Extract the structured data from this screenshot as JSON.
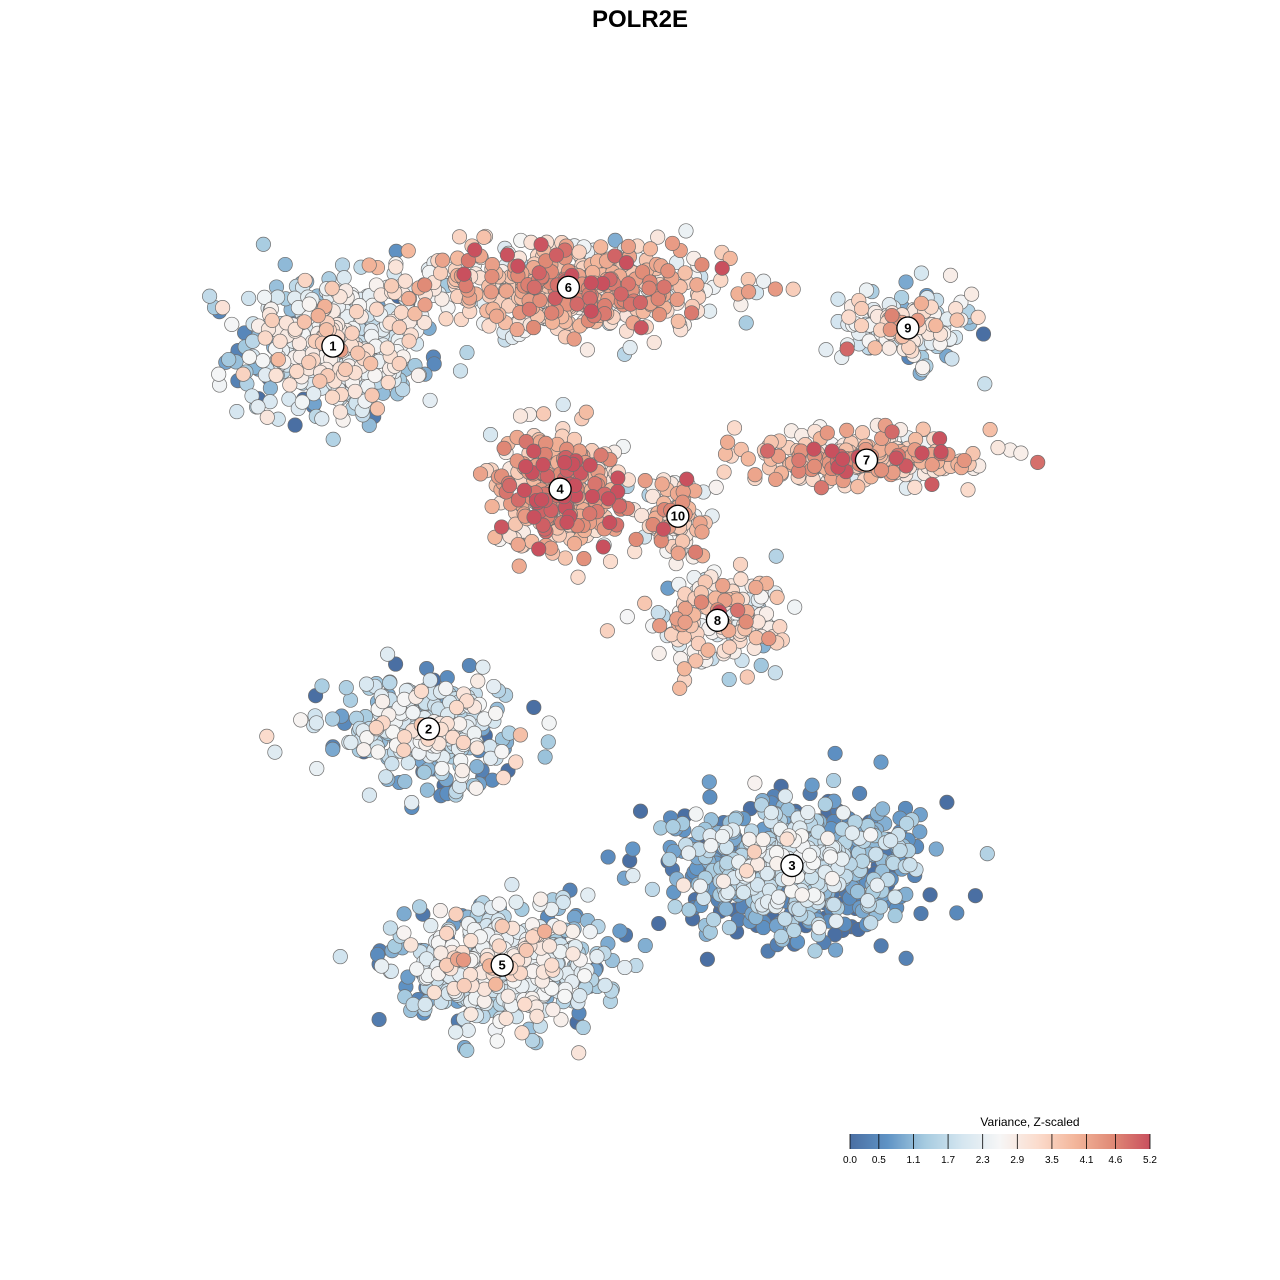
{
  "chart_data": {
    "type": "scatter",
    "title": "POLR2E",
    "xlabel": "",
    "ylabel": "",
    "xlim": [
      0,
      1
    ],
    "ylim": [
      0,
      1
    ],
    "grid": false,
    "legend_position": "bottom-right",
    "colorbar": {
      "title": "Variance, Z-scaled",
      "min": 0.0,
      "max": 5.2,
      "ticks": [
        "0.0",
        "0.5",
        "1.1",
        "1.7",
        "2.3",
        "2.9",
        "3.5",
        "4.1",
        "4.6",
        "5.2"
      ],
      "tick_values": [
        0.0,
        0.5,
        1.1,
        1.7,
        2.3,
        2.9,
        3.5,
        4.1,
        4.6,
        5.2
      ],
      "colors": [
        "#4a6fa3",
        "#5f93c5",
        "#a6cbe0",
        "#d5e6f0",
        "#f6f6f6",
        "#fbdccd",
        "#f3b69b",
        "#e08a76",
        "#c9505e"
      ]
    },
    "clusters": [
      {
        "label": "1",
        "x": 0.139,
        "y": 0.822,
        "value": 2.0,
        "spread": [
          0.1,
          0.075
        ],
        "n": 520
      },
      {
        "label": "6",
        "x": 0.395,
        "y": 0.887,
        "value": 3.5,
        "spread": [
          0.17,
          0.05
        ],
        "n": 560
      },
      {
        "label": "4",
        "x": 0.386,
        "y": 0.664,
        "value": 3.9,
        "spread": [
          0.075,
          0.065
        ],
        "n": 330
      },
      {
        "label": "10",
        "x": 0.514,
        "y": 0.634,
        "value": 3.4,
        "spread": [
          0.035,
          0.045
        ],
        "n": 90
      },
      {
        "label": "9",
        "x": 0.764,
        "y": 0.842,
        "value": 2.3,
        "spread": [
          0.07,
          0.04
        ],
        "n": 160
      },
      {
        "label": "7",
        "x": 0.719,
        "y": 0.696,
        "value": 3.6,
        "spread": [
          0.14,
          0.03
        ],
        "n": 230
      },
      {
        "label": "8",
        "x": 0.557,
        "y": 0.519,
        "value": 3.0,
        "spread": [
          0.07,
          0.05
        ],
        "n": 170
      },
      {
        "label": "2",
        "x": 0.243,
        "y": 0.399,
        "value": 1.7,
        "spread": [
          0.1,
          0.055
        ],
        "n": 330
      },
      {
        "label": "3",
        "x": 0.638,
        "y": 0.248,
        "value": 1.0,
        "spread": [
          0.13,
          0.075
        ],
        "n": 720
      },
      {
        "label": "5",
        "x": 0.323,
        "y": 0.138,
        "value": 1.9,
        "spread": [
          0.11,
          0.06
        ],
        "n": 560
      }
    ]
  }
}
